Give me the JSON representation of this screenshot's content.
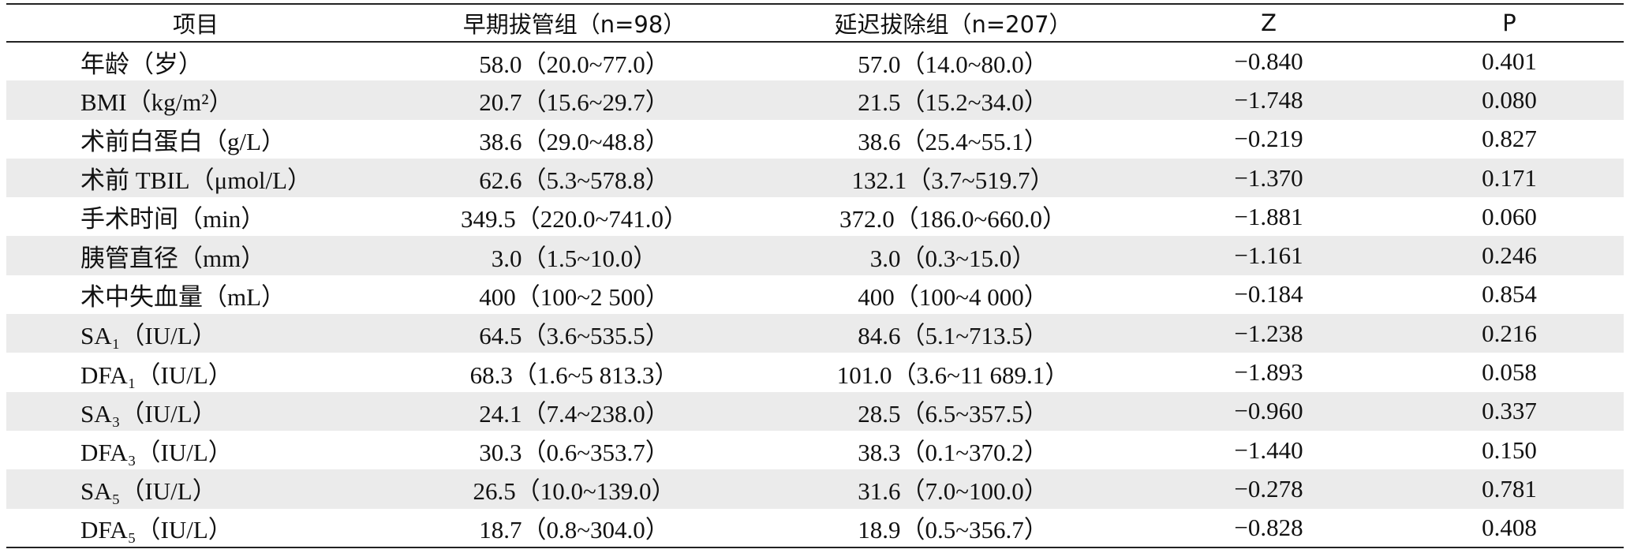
{
  "table": {
    "header": [
      "项目",
      "早期拔管组（n=98）",
      "延迟拔除组（n=207）",
      "Z",
      "P"
    ],
    "rows": [
      [
        "年龄（岁）",
        "58.0（20.0~77.0）",
        "57.0（14.0~80.0）",
        "−0.840",
        "0.401"
      ],
      [
        "BMI（kg/m²）",
        "20.7（15.6~29.7）",
        "21.5（15.2~34.0）",
        "−1.748",
        "0.080"
      ],
      [
        "术前白蛋白（g/L）",
        "38.6（29.0~48.8）",
        "38.6（25.4~55.1）",
        "−0.219",
        "0.827"
      ],
      [
        "术前 TBIL（μmol/L）",
        "62.6（5.3~578.8）",
        "132.1（3.7~519.7）",
        "−1.370",
        "0.171"
      ],
      [
        "手术时间（min）",
        "349.5（220.0~741.0）",
        "372.0（186.0~660.0）",
        "−1.881",
        "0.060"
      ],
      [
        "胰管直径（mm）",
        "3.0（1.5~10.0）",
        "3.0（0.3~15.0）",
        "−1.161",
        "0.246"
      ],
      [
        "术中失血量（mL）",
        "400（100~2 500）",
        "400（100~4 000）",
        "−0.184",
        "0.854"
      ],
      [
        "SA₁（IU/L）",
        "64.5（3.6~535.5）",
        "84.6（5.1~713.5）",
        "−1.238",
        "0.216"
      ],
      [
        "DFA₁（IU/L）",
        "68.3（1.6~5 813.3）",
        "101.0（3.6~11 689.1）",
        "−1.893",
        "0.058"
      ],
      [
        "SA₃（IU/L）",
        "24.1（7.4~238.0）",
        "28.5（6.5~357.5）",
        "−0.960",
        "0.337"
      ],
      [
        "DFA₃（IU/L）",
        "30.3（0.6~353.7）",
        "38.3（0.1~370.2）",
        "−1.440",
        "0.150"
      ],
      [
        "SA₅（IU/L）",
        "26.5（10.0~139.0）",
        "31.6（7.0~100.0）",
        "−0.278",
        "0.781"
      ],
      [
        "DFA₅（IU/L）",
        "18.7（0.8~304.0）",
        "18.9（0.5~356.7）",
        "−0.828",
        "0.408"
      ]
    ]
  }
}
